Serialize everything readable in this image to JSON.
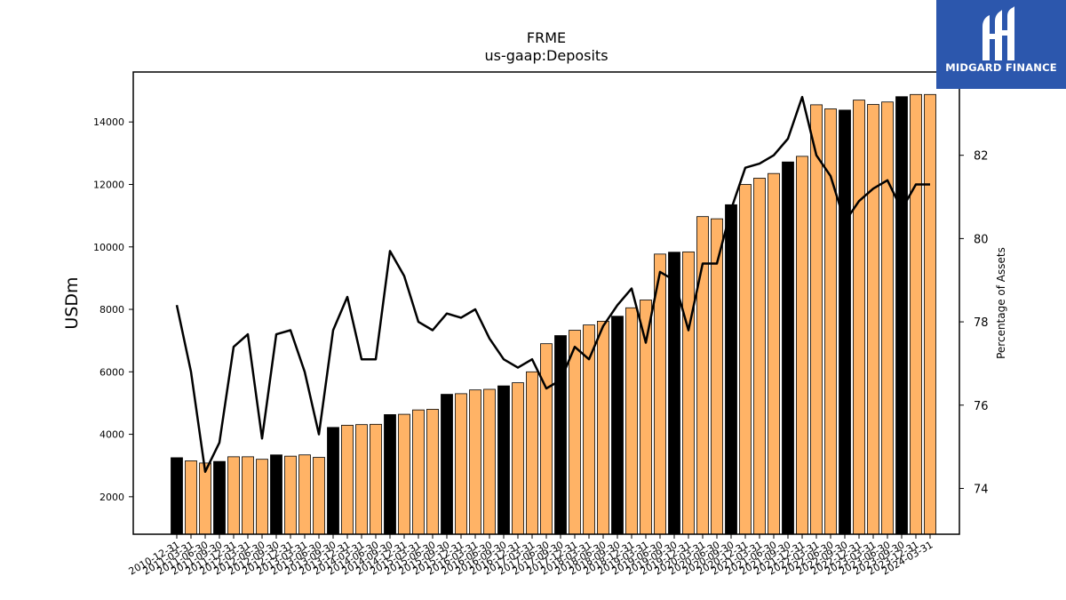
{
  "logo": {
    "text": "MIDGARD FINANCE"
  },
  "chart_data": {
    "type": "bar",
    "title": "FRME",
    "subtitle": "us-gaap:Deposits",
    "ylabel": "USDm",
    "y2label": "Percentage of Assets",
    "ylim": [
      800,
      15600
    ],
    "y2lim": [
      72.9,
      84.0
    ],
    "yticks": [
      2000,
      4000,
      6000,
      8000,
      10000,
      12000,
      14000
    ],
    "y2ticks": [
      74,
      76,
      78,
      80,
      82
    ],
    "grid": false,
    "colors": {
      "annual_bar": "#000000",
      "quarter_bar": "#ffb366",
      "bar_edge": "#000000",
      "line": "#000000"
    },
    "categories": [
      "2010-12-31",
      "2011-03-31",
      "2011-06-30",
      "2011-09-30",
      "2011-12-31",
      "2012-03-31",
      "2012-06-30",
      "2012-09-30",
      "2012-12-31",
      "2013-03-31",
      "2013-06-30",
      "2013-09-30",
      "2013-12-31",
      "2014-03-31",
      "2014-06-30",
      "2014-09-30",
      "2014-12-31",
      "2015-03-31",
      "2015-06-30",
      "2015-09-30",
      "2015-12-31",
      "2016-03-31",
      "2016-06-30",
      "2016-09-30",
      "2016-12-31",
      "2017-03-31",
      "2017-06-30",
      "2017-09-30",
      "2017-12-31",
      "2018-03-31",
      "2018-06-30",
      "2018-09-30",
      "2018-12-31",
      "2019-03-31",
      "2019-06-30",
      "2019-09-30",
      "2019-12-31",
      "2020-03-31",
      "2020-06-30",
      "2020-09-30",
      "2020-12-31",
      "2021-03-31",
      "2021-06-30",
      "2021-09-30",
      "2021-12-31",
      "2022-03-31",
      "2022-06-30",
      "2022-09-30",
      "2022-12-31",
      "2023-03-31",
      "2023-06-30",
      "2023-09-30",
      "2023-12-31",
      "2024-03-31"
    ],
    "annual_flags": [
      1,
      0,
      0,
      1,
      0,
      0,
      0,
      1,
      0,
      0,
      0,
      1,
      0,
      0,
      0,
      1,
      0,
      0,
      0,
      1,
      0,
      0,
      0,
      1,
      0,
      0,
      0,
      1,
      0,
      0,
      0,
      1,
      0,
      0,
      0,
      1,
      0,
      0,
      0,
      1,
      0,
      0,
      0,
      1,
      0,
      0,
      0,
      1,
      0,
      0,
      0,
      1,
      0,
      0
    ],
    "series": [
      {
        "name": "Deposits",
        "axis": "left",
        "values": [
          3250,
          3150,
          3080,
          3130,
          3280,
          3280,
          3200,
          3340,
          3300,
          3340,
          3260,
          4220,
          4290,
          4310,
          4320,
          4630,
          4640,
          4780,
          4800,
          5280,
          5300,
          5420,
          5440,
          5550,
          5650,
          6000,
          6900,
          7160,
          7330,
          7500,
          7620,
          7780,
          8050,
          8300,
          9770,
          9830,
          9840,
          10970,
          10900,
          11350,
          12000,
          12200,
          12350,
          12720,
          12900,
          14550,
          14420,
          14380,
          14700,
          14560,
          14640,
          14810,
          14880,
          14880
        ]
      },
      {
        "name": "Percentage of Assets",
        "axis": "right",
        "type": "line",
        "values": [
          78.4,
          76.8,
          74.4,
          75.1,
          77.4,
          77.7,
          75.2,
          77.7,
          77.8,
          76.8,
          75.3,
          77.8,
          78.6,
          77.1,
          77.1,
          79.7,
          79.1,
          78.0,
          77.8,
          78.2,
          78.1,
          78.3,
          77.6,
          77.1,
          76.9,
          77.1,
          76.4,
          76.6,
          77.4,
          77.1,
          77.9,
          78.4,
          78.8,
          77.5,
          79.2,
          79.0,
          77.8,
          79.4,
          79.4,
          80.7,
          81.7,
          81.8,
          82.0,
          82.4,
          83.4,
          82.0,
          81.5,
          80.4,
          80.9,
          81.2,
          81.4,
          80.7,
          81.3,
          81.3
        ]
      }
    ]
  }
}
